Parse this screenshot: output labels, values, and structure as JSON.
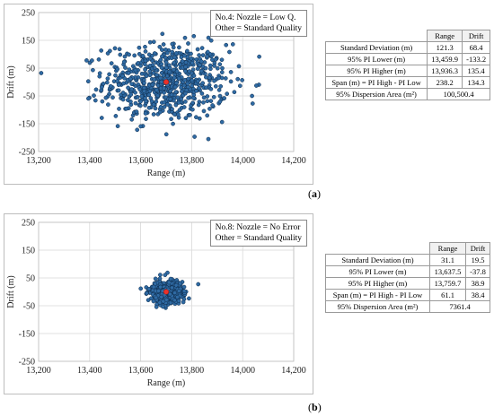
{
  "colors": {
    "point": "#2f6aa3",
    "point_edge": "#0c2a4a",
    "center": "#e8322b",
    "grid": "#d9d9d9"
  },
  "chart_data": [
    {
      "type": "scatter",
      "panel": "a",
      "caption_label": "a",
      "annotation": [
        "No.4: Nozzle = Low Q.",
        "Other = Standard Quality"
      ],
      "xlabel": "Range (m)",
      "ylabel": "Drift (m)",
      "xlim": [
        13200,
        14200
      ],
      "ylim": [
        -250,
        250
      ],
      "xticks": [
        "13,200",
        "13,400",
        "13,600",
        "13,800",
        "14,000",
        "14,200"
      ],
      "yticks": [
        "250",
        "150",
        "50",
        "-50",
        "-150",
        "-250"
      ],
      "grid": true,
      "center": {
        "x": 13700,
        "y": 0
      },
      "distribution": {
        "count": 700,
        "mean_x": 13700,
        "mean_y": 0,
        "sd_x": 121.3,
        "sd_y": 68.4
      },
      "table": {
        "headers": [
          "Range",
          "Drift"
        ],
        "rows": [
          {
            "label": "Standard Deviation (m)",
            "range": "121.3",
            "drift": "68.4"
          },
          {
            "label": "95% PI Lower (m)",
            "range": "13,459.9",
            "drift": "-133.2"
          },
          {
            "label": "95% PI Higher (m)",
            "range": "13,936.3",
            "drift": "135.4"
          },
          {
            "label": "Span (m) = PI High - PI Low",
            "range": "238.2",
            "drift": "134.3"
          }
        ],
        "area_label": "95% Dispersion Area (m²)",
        "area_value": "100,500.4"
      }
    },
    {
      "type": "scatter",
      "panel": "b",
      "caption_label": "b",
      "annotation": [
        "No.8: Nozzle = No Error",
        "Other = Standard Quality"
      ],
      "xlabel": "Range (m)",
      "ylabel": "Drift (m)",
      "xlim": [
        13200,
        14200
      ],
      "ylim": [
        -250,
        250
      ],
      "xticks": [
        "13,200",
        "13,400",
        "13,600",
        "13,800",
        "14,000",
        "14,200"
      ],
      "yticks": [
        "250",
        "150",
        "50",
        "-50",
        "-150",
        "-250"
      ],
      "grid": true,
      "center": {
        "x": 13700,
        "y": 0
      },
      "distribution": {
        "count": 600,
        "mean_x": 13700,
        "mean_y": 0,
        "sd_x": 31.1,
        "sd_y": 19.5
      },
      "table": {
        "headers": [
          "Range",
          "Drift"
        ],
        "rows": [
          {
            "label": "Standard Deviation (m)",
            "range": "31.1",
            "drift": "19.5"
          },
          {
            "label": "95% PI Lower (m)",
            "range": "13,637.5",
            "drift": "-37.8"
          },
          {
            "label": "95% PI Higher (m)",
            "range": "13,759.7",
            "drift": "38.9"
          },
          {
            "label": "Span (m) = PI High - PI Low",
            "range": "61.1",
            "drift": "38.4"
          }
        ],
        "area_label": "95% Dispersion Area (m²)",
        "area_value": "7361.4"
      }
    }
  ]
}
